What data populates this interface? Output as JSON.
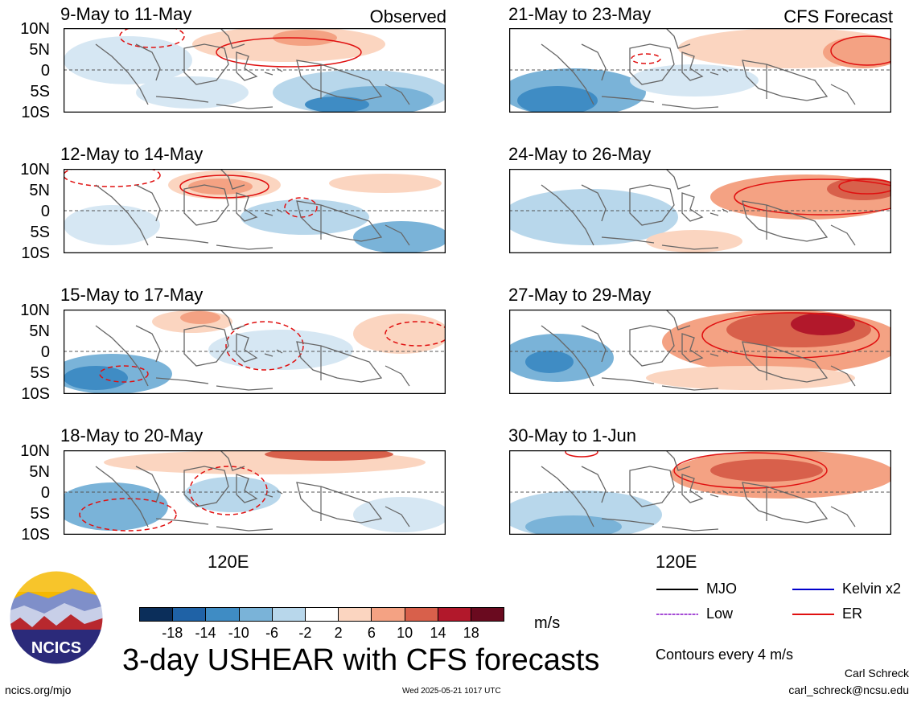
{
  "panels_left": [
    {
      "title": "9-May to 11-May",
      "tag": "Observed"
    },
    {
      "title": "12-May to 14-May",
      "tag": ""
    },
    {
      "title": "15-May to 17-May",
      "tag": ""
    },
    {
      "title": "18-May to 20-May",
      "tag": ""
    }
  ],
  "panels_right": [
    {
      "title": "21-May to 23-May",
      "tag": "CFS Forecast"
    },
    {
      "title": "24-May to 26-May",
      "tag": ""
    },
    {
      "title": "27-May to 29-May",
      "tag": ""
    },
    {
      "title": "30-May to 1-Jun",
      "tag": ""
    }
  ],
  "lat_labels": [
    "10N",
    "5N",
    "0",
    "5S",
    "10S"
  ],
  "lon_label": "120E",
  "colorbar": {
    "unit": "m/s",
    "ticks": [
      "-18",
      "-14",
      "-10",
      "-6",
      "-2",
      "2",
      "6",
      "10",
      "14",
      "18"
    ],
    "colors": [
      "#0b2e5a",
      "#1f62a6",
      "#3f8cc4",
      "#7ab3d8",
      "#b8d7eb",
      "#ffffff",
      "#fbd5c0",
      "#f4a283",
      "#d8604b",
      "#b2182b",
      "#6a0a1f"
    ]
  },
  "legend": {
    "items": [
      {
        "label": "MJO",
        "color": "#000000"
      },
      {
        "label": "Kelvin x2",
        "color": "#0000cc"
      },
      {
        "label": "Low",
        "color": "#a64dd6"
      },
      {
        "label": "ER",
        "color": "#e01010"
      }
    ],
    "contour_note": "Contours every 4 m/s"
  },
  "main_title": "3-day USHEAR with CFS forecasts",
  "logo_text": "NCICS",
  "footer": {
    "left": "ncics.org/mjo",
    "center": "Wed 2025-05-21 1017 UTC",
    "author": "Carl Schreck",
    "email": "carl_schreck@ncsu.edu"
  }
}
